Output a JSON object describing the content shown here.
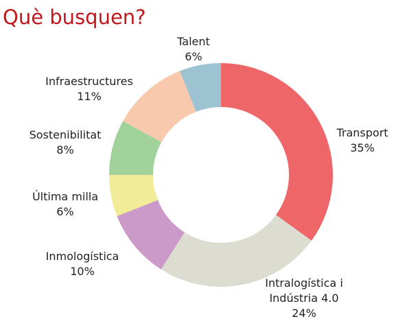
{
  "chart_data": {
    "type": "donut",
    "title": "Què busquen?",
    "categories": [
      "Transport",
      "Intralogística i Indústria 4.0",
      "Inmologística",
      "Última milla",
      "Sostenibilitat",
      "Infraestructures",
      "Talent"
    ],
    "values": [
      35,
      24,
      10,
      6,
      8,
      11,
      6
    ],
    "value_labels": [
      "35%",
      "24%",
      "10%",
      "6%",
      "8%",
      "11%",
      "6%"
    ],
    "colors": [
      "#ef6669",
      "#dddcd0",
      "#cb9ac8",
      "#f2ec98",
      "#a1d29b",
      "#f9c9ae",
      "#9dc2d1"
    ]
  }
}
